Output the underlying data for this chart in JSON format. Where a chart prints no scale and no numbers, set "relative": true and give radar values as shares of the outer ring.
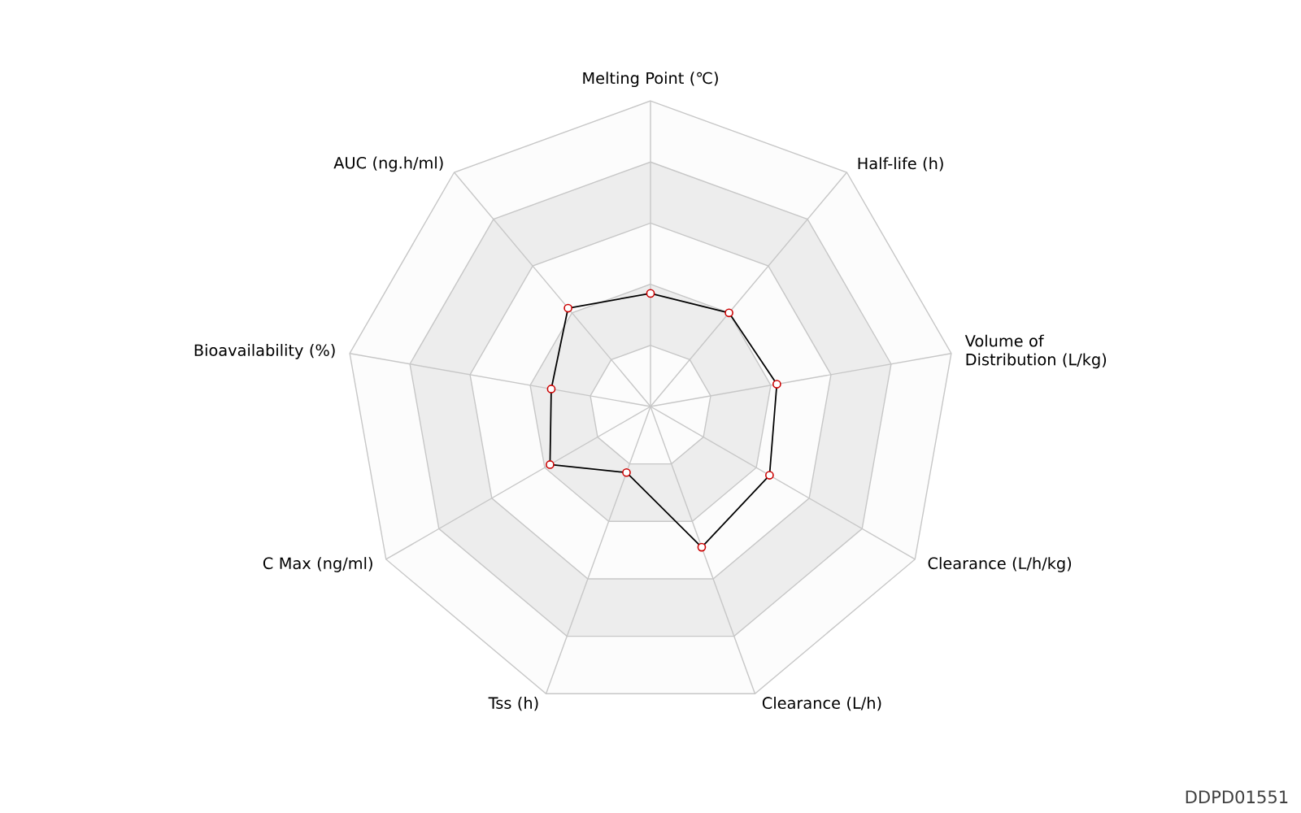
{
  "chart_data": {
    "type": "radar",
    "relative": true,
    "categories": [
      "Melting Point (℃)",
      "Half-life (h)",
      "Volume of Distribution (L/kg)",
      "Clearance (L/h/kg)",
      "Clearance (L/h)",
      "Tss (h)",
      "C Max (ng/ml)",
      "Bioavailability (%)",
      "AUC (ng.h/ml)"
    ],
    "series": [
      {
        "color": "#000000",
        "values": [
          0.37,
          0.4,
          0.42,
          0.45,
          0.49,
          0.23,
          0.38,
          0.33,
          0.42
        ]
      }
    ],
    "marker": "circle",
    "line_style": "solid",
    "annotations": [
      "DDPD01551"
    ]
  }
}
